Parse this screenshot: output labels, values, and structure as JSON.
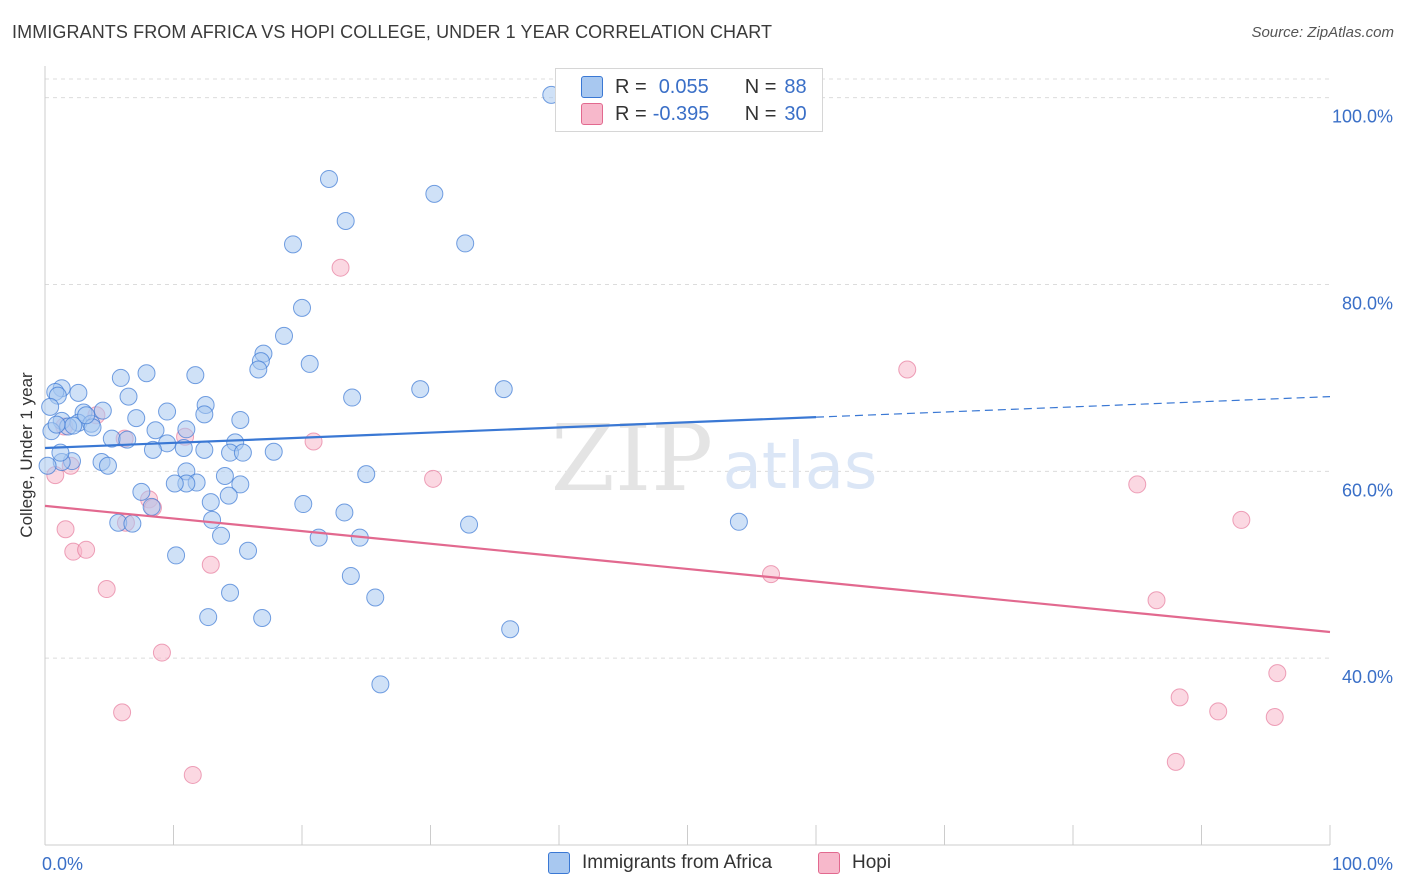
{
  "header": {
    "title": "IMMIGRANTS FROM AFRICA VS HOPI COLLEGE, UNDER 1 YEAR CORRELATION CHART",
    "source": "Source: ZipAtlas.com"
  },
  "watermark": {
    "zip": "ZIP",
    "atlas": "atlas"
  },
  "legend": {
    "rows": [
      {
        "r_label": "R =",
        "r_value": "0.055",
        "n_label": "N =",
        "n_value": "88",
        "color": "#a8c8f0"
      },
      {
        "r_label": "R =",
        "r_value": "-0.395",
        "n_label": "N =",
        "n_value": "30",
        "color": "#f7b8cb"
      }
    ]
  },
  "bottom_legend": {
    "items": [
      {
        "label": "Immigrants from Africa",
        "color": "#a8c8f0"
      },
      {
        "label": "Hopi",
        "color": "#f7b8cb"
      }
    ]
  },
  "chart_data": {
    "type": "scatter",
    "title": "IMMIGRANTS FROM AFRICA VS HOPI COLLEGE, UNDER 1 YEAR CORRELATION CHART",
    "xlabel": "",
    "ylabel": "College, Under 1 year",
    "xlim": [
      0,
      100
    ],
    "ylim": [
      20,
      102
    ],
    "x_tick_labels": [
      "0.0%",
      "100.0%"
    ],
    "y_ticks": [
      40,
      60,
      80,
      100
    ],
    "y_tick_labels": [
      "40.0%",
      "60.0%",
      "80.0%",
      "100.0%"
    ],
    "grid": true,
    "legend_position": "top-center",
    "colors": {
      "africa": "#3a78d4",
      "africa_fill": "#a8c8f0",
      "hopi": "#e2698f",
      "hopi_fill": "#f7b8cb",
      "tick_text": "#3a6fc7"
    },
    "series": [
      {
        "name": "Immigrants from Africa",
        "trend": {
          "x": [
            0,
            60
          ],
          "y": [
            62.5,
            65.8
          ],
          "dashed_to": [
            100,
            68.0
          ]
        },
        "points": [
          [
            39.4,
            100.3
          ],
          [
            22.1,
            91.3
          ],
          [
            30.3,
            89.7
          ],
          [
            23.4,
            86.8
          ],
          [
            19.3,
            84.3
          ],
          [
            32.7,
            84.4
          ],
          [
            20.0,
            77.5
          ],
          [
            18.6,
            74.5
          ],
          [
            17.0,
            72.6
          ],
          [
            20.6,
            71.5
          ],
          [
            16.8,
            71.8
          ],
          [
            16.6,
            70.9
          ],
          [
            7.9,
            70.5
          ],
          [
            11.7,
            70.3
          ],
          [
            5.9,
            70.0
          ],
          [
            1.3,
            68.9
          ],
          [
            0.8,
            68.5
          ],
          [
            1.0,
            68.1
          ],
          [
            2.6,
            68.4
          ],
          [
            6.5,
            68.0
          ],
          [
            23.9,
            67.9
          ],
          [
            29.2,
            68.8
          ],
          [
            35.7,
            68.8
          ],
          [
            12.5,
            67.1
          ],
          [
            0.4,
            66.9
          ],
          [
            3.0,
            66.3
          ],
          [
            4.5,
            66.5
          ],
          [
            9.5,
            66.4
          ],
          [
            12.4,
            66.1
          ],
          [
            7.1,
            65.7
          ],
          [
            15.2,
            65.5
          ],
          [
            2.6,
            65.2
          ],
          [
            1.3,
            65.4
          ],
          [
            3.6,
            65.1
          ],
          [
            1.8,
            64.8
          ],
          [
            3.7,
            64.7
          ],
          [
            8.6,
            64.4
          ],
          [
            11.0,
            64.5
          ],
          [
            5.2,
            63.5
          ],
          [
            9.5,
            63.0
          ],
          [
            6.4,
            63.4
          ],
          [
            14.8,
            63.1
          ],
          [
            8.4,
            62.3
          ],
          [
            10.8,
            62.5
          ],
          [
            12.4,
            62.3
          ],
          [
            14.4,
            62.0
          ],
          [
            15.4,
            62.0
          ],
          [
            17.8,
            62.1
          ],
          [
            2.1,
            61.1
          ],
          [
            1.3,
            61.0
          ],
          [
            4.4,
            61.0
          ],
          [
            4.9,
            60.6
          ],
          [
            0.2,
            60.6
          ],
          [
            11.0,
            60.0
          ],
          [
            14.0,
            59.5
          ],
          [
            25.0,
            59.7
          ],
          [
            15.2,
            58.6
          ],
          [
            11.8,
            58.8
          ],
          [
            11.0,
            58.7
          ],
          [
            10.1,
            58.7
          ],
          [
            7.5,
            57.8
          ],
          [
            14.3,
            57.4
          ],
          [
            12.9,
            56.7
          ],
          [
            8.3,
            56.2
          ],
          [
            20.1,
            56.5
          ],
          [
            23.3,
            55.6
          ],
          [
            13.0,
            54.8
          ],
          [
            5.7,
            54.5
          ],
          [
            6.8,
            54.4
          ],
          [
            33.0,
            54.3
          ],
          [
            54.0,
            54.6
          ],
          [
            13.7,
            53.1
          ],
          [
            21.3,
            52.9
          ],
          [
            24.5,
            52.9
          ],
          [
            15.8,
            51.5
          ],
          [
            10.2,
            51.0
          ],
          [
            23.8,
            48.8
          ],
          [
            14.4,
            47.0
          ],
          [
            25.7,
            46.5
          ],
          [
            12.7,
            44.4
          ],
          [
            16.9,
            44.3
          ],
          [
            36.2,
            43.1
          ],
          [
            26.1,
            37.2
          ],
          [
            1.2,
            62.0
          ],
          [
            0.5,
            64.3
          ],
          [
            2.2,
            64.9
          ],
          [
            0.9,
            65.0
          ],
          [
            3.2,
            66.0
          ]
        ]
      },
      {
        "name": "Hopi",
        "trend": {
          "x": [
            0,
            100
          ],
          "y": [
            56.3,
            42.8
          ]
        },
        "points": [
          [
            23.0,
            81.8
          ],
          [
            67.1,
            70.9
          ],
          [
            1.5,
            64.8
          ],
          [
            10.9,
            63.7
          ],
          [
            20.9,
            63.2
          ],
          [
            6.2,
            63.5
          ],
          [
            2.0,
            60.6
          ],
          [
            0.8,
            59.6
          ],
          [
            30.2,
            59.2
          ],
          [
            85.0,
            58.6
          ],
          [
            8.1,
            57.0
          ],
          [
            8.4,
            56.1
          ],
          [
            6.3,
            54.5
          ],
          [
            93.1,
            54.8
          ],
          [
            1.6,
            53.8
          ],
          [
            2.2,
            51.4
          ],
          [
            3.2,
            51.6
          ],
          [
            12.9,
            50.0
          ],
          [
            56.5,
            49.0
          ],
          [
            4.8,
            47.4
          ],
          [
            86.5,
            46.2
          ],
          [
            9.1,
            40.6
          ],
          [
            95.9,
            38.4
          ],
          [
            88.3,
            35.8
          ],
          [
            6.0,
            34.2
          ],
          [
            91.3,
            34.3
          ],
          [
            95.7,
            33.7
          ],
          [
            88.0,
            28.9
          ],
          [
            11.5,
            27.5
          ],
          [
            4.0,
            66.0
          ]
        ]
      }
    ]
  }
}
